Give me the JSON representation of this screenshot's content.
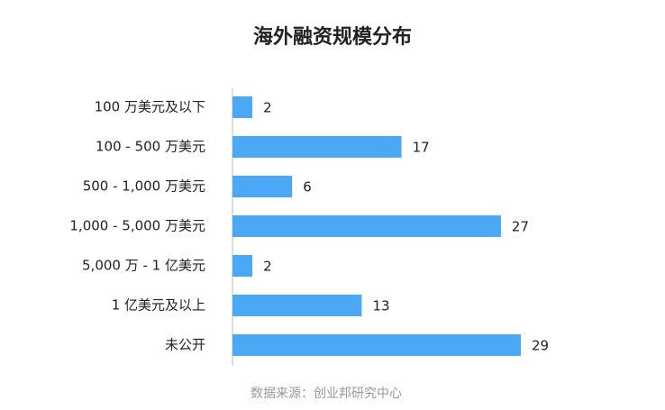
{
  "chart_data": {
    "type": "bar",
    "orientation": "horizontal",
    "title": "海外融资规模分布",
    "categories": [
      "100 万美元及以下",
      "100 - 500 万美元",
      "500 - 1,000 万美元",
      "1,000 - 5,000 万美元",
      "5,000 万 - 1 亿美元",
      "1 亿美元及以上",
      "未公开"
    ],
    "values": [
      2,
      17,
      6,
      27,
      2,
      13,
      29
    ],
    "color": "#4aa8f5",
    "source": "数据来源：创业邦研究中心"
  }
}
